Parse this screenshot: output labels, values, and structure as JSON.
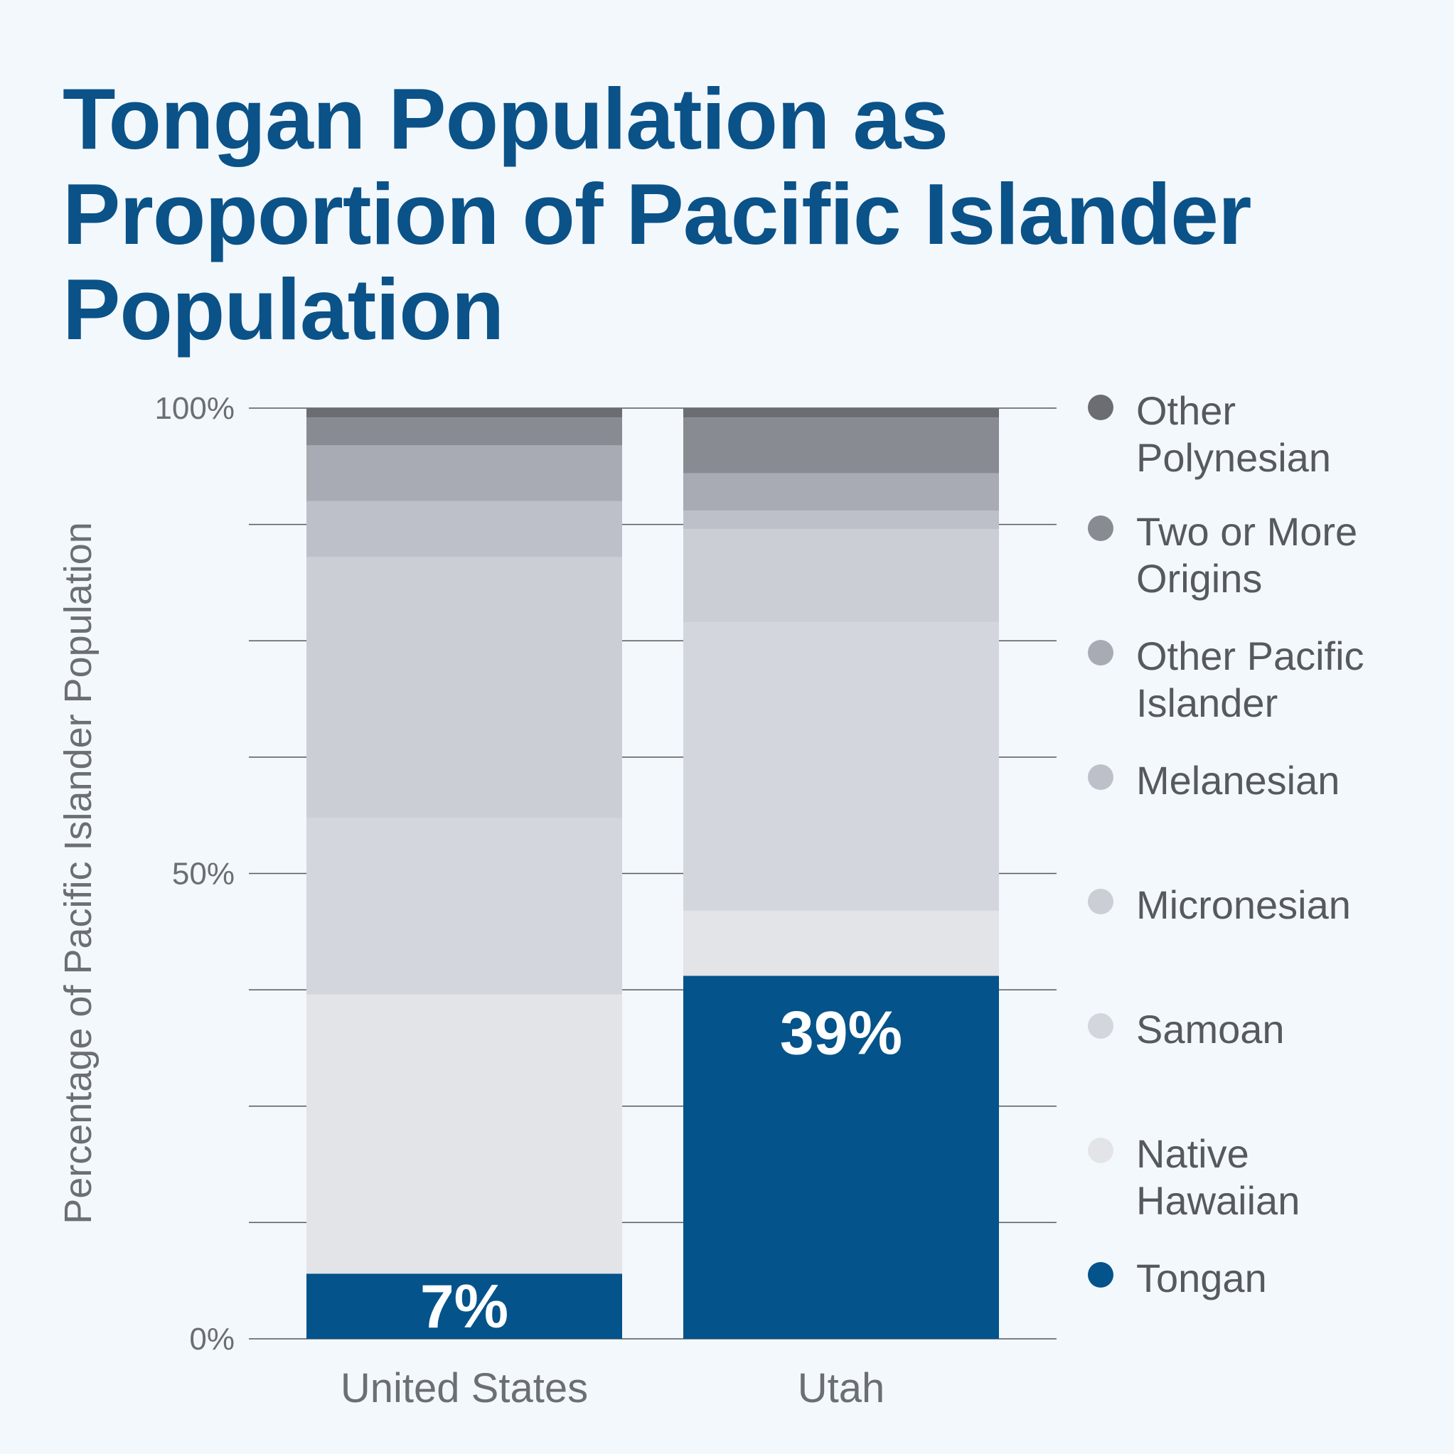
{
  "title_lines": [
    "Tongan Population as",
    "Proportion of Pacific Islander",
    "Population"
  ],
  "chart_data": {
    "type": "bar",
    "stacked": true,
    "title": "Tongan Population as Proportion of Pacific Islander Population",
    "ylabel": "Percentage of Pacific Islander Population",
    "xlabel": "",
    "ylim": [
      0,
      100
    ],
    "y_tick_labels": [
      "100%",
      "50%",
      "0%"
    ],
    "y_tick_values": [
      100,
      50,
      0
    ],
    "categories": [
      "United States",
      "Utah"
    ],
    "series": [
      {
        "name": "Tongan",
        "color": "#04538a",
        "values": [
          7,
          39
        ]
      },
      {
        "name": "Native Hawaiian",
        "color": "#e2e4e8",
        "values": [
          30,
          7
        ]
      },
      {
        "name": "Samoan",
        "color": "#d3d6dd",
        "values": [
          19,
          31
        ]
      },
      {
        "name": "Micronesian",
        "color": "#cbced5",
        "values": [
          28,
          10
        ]
      },
      {
        "name": "Melanesian",
        "color": "#bdc0c8",
        "values": [
          6,
          2
        ]
      },
      {
        "name": "Other Pacific Islander",
        "color": "#a8abb3",
        "values": [
          6,
          4
        ]
      },
      {
        "name": "Two or More Origins",
        "color": "#888b92",
        "values": [
          3,
          6
        ]
      },
      {
        "name": "Other Polynesian",
        "color": "#6b6d72",
        "values": [
          1,
          1
        ]
      }
    ],
    "data_labels": {
      "United States": "7%",
      "Utah": "39%"
    },
    "legend_position": "right",
    "grid": true
  },
  "legend": [
    {
      "label": "Other\nPolynesian",
      "color": "#6b6d72"
    },
    {
      "label": "Two or More\nOrigins",
      "color": "#888b92"
    },
    {
      "label": "Other Pacific\nIslander",
      "color": "#a8abb3"
    },
    {
      "label": "Melanesian",
      "color": "#bdc0c8"
    },
    {
      "label": "Micronesian",
      "color": "#cbced5"
    },
    {
      "label": "Samoan",
      "color": "#d3d6dd"
    },
    {
      "label": "Native\nHawaiian",
      "color": "#e2e4e8"
    },
    {
      "label": "Tongan",
      "color": "#04538a"
    }
  ]
}
